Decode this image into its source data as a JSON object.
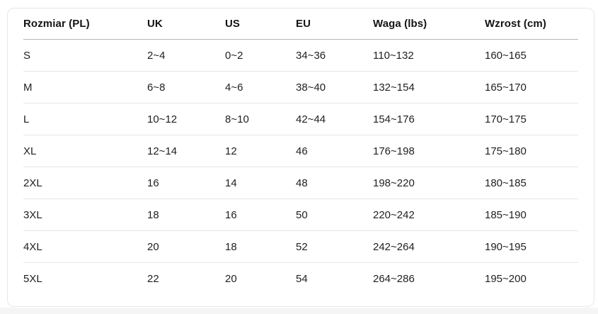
{
  "table": {
    "columns": [
      "Rozmiar (PL)",
      "UK",
      "US",
      "EU",
      "Waga (lbs)",
      "Wzrost (cm)"
    ],
    "rows": [
      [
        "S",
        "2~4",
        "0~2",
        "34~36",
        "110~132",
        "160~165"
      ],
      [
        "M",
        "6~8",
        "4~6",
        "38~40",
        "132~154",
        "165~170"
      ],
      [
        "L",
        "10~12",
        "8~10",
        "42~44",
        "154~176",
        "170~175"
      ],
      [
        "XL",
        "12~14",
        "12",
        "46",
        "176~198",
        "175~180"
      ],
      [
        "2XL",
        "16",
        "14",
        "48",
        "198~220",
        "180~185"
      ],
      [
        "3XL",
        "18",
        "16",
        "50",
        "220~242",
        "185~190"
      ],
      [
        "4XL",
        "20",
        "18",
        "52",
        "242~264",
        "190~195"
      ],
      [
        "5XL",
        "22",
        "20",
        "54",
        "264~286",
        "195~200"
      ]
    ]
  },
  "colors": {
    "text": "#1f1f1f",
    "header_text": "#141414",
    "header_underline": "#b6b6b6",
    "row_divider": "#e6e6e6",
    "card_border": "#e7e7e7",
    "card_background": "#ffffff",
    "page_strip": "#f5f5f5"
  }
}
